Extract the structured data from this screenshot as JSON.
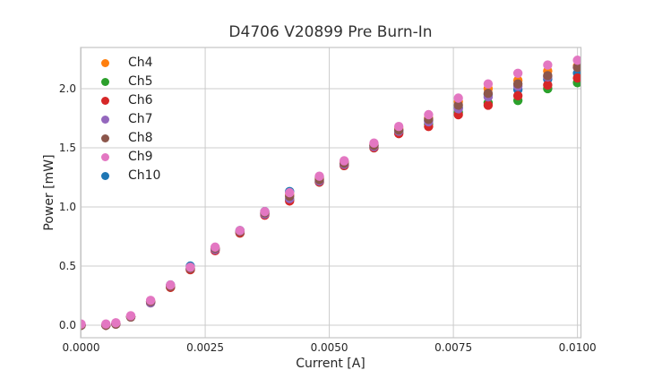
{
  "figure": {
    "background": "#ffffff",
    "text_color": "#262626"
  },
  "chart_data": {
    "type": "scatter",
    "title": "D4706 V20899 Pre Burn-In",
    "xlabel": "Current [A]",
    "ylabel": "Power [mW]",
    "xlim": [
      -1e-05,
      0.01007
    ],
    "ylim": [
      -0.106,
      2.348
    ],
    "grid": true,
    "grid_color": "#cccccc",
    "spine_color": "#c4c4c4",
    "legend_position": "upper left",
    "marker_radius_px": 5.2,
    "xticks": [
      {
        "value": 0.0,
        "label": "0.0000"
      },
      {
        "value": 0.0025,
        "label": "0.0025"
      },
      {
        "value": 0.005,
        "label": "0.0050"
      },
      {
        "value": 0.0075,
        "label": "0.0075"
      },
      {
        "value": 0.01,
        "label": "0.0100"
      }
    ],
    "yticks": [
      {
        "value": 0.0,
        "label": "0.0"
      },
      {
        "value": 0.5,
        "label": "0.5"
      },
      {
        "value": 1.0,
        "label": "1.0"
      },
      {
        "value": 1.5,
        "label": "1.5"
      },
      {
        "value": 2.0,
        "label": "2.0"
      }
    ],
    "x": [
      0.0,
      0.0005,
      0.0007,
      0.001,
      0.0014,
      0.0018,
      0.0022,
      0.0027,
      0.0032,
      0.0037,
      0.0042,
      0.0048,
      0.0053,
      0.0059,
      0.0064,
      0.007,
      0.0076,
      0.0082,
      0.0088,
      0.0094,
      0.01
    ],
    "series": [
      {
        "name": "Ch4",
        "color": "#ff7f0e",
        "values": [
          0.0,
          0.0,
          0.01,
          0.07,
          0.2,
          0.33,
          0.48,
          0.65,
          0.79,
          0.95,
          1.1,
          1.24,
          1.38,
          1.53,
          1.66,
          1.75,
          1.89,
          2.0,
          2.07,
          2.15,
          2.19
        ]
      },
      {
        "name": "Ch5",
        "color": "#2ca02c",
        "values": [
          0.0,
          0.0,
          0.01,
          0.07,
          0.19,
          0.32,
          0.47,
          0.64,
          0.78,
          0.94,
          1.06,
          1.21,
          1.35,
          1.5,
          1.63,
          1.7,
          1.8,
          1.88,
          1.9,
          2.0,
          2.05
        ]
      },
      {
        "name": "Ch6",
        "color": "#d62728",
        "values": [
          0.0,
          0.0,
          0.01,
          0.07,
          0.19,
          0.32,
          0.47,
          0.63,
          0.78,
          0.93,
          1.05,
          1.21,
          1.35,
          1.5,
          1.62,
          1.68,
          1.78,
          1.86,
          1.94,
          2.03,
          2.09
        ]
      },
      {
        "name": "Ch7",
        "color": "#9467bd",
        "values": [
          0.0,
          0.0,
          0.01,
          0.07,
          0.19,
          0.33,
          0.48,
          0.64,
          0.79,
          0.94,
          1.07,
          1.22,
          1.36,
          1.51,
          1.64,
          1.72,
          1.83,
          1.93,
          2.02,
          2.1,
          2.18
        ]
      },
      {
        "name": "Ch8",
        "color": "#8c564b",
        "values": [
          0.0,
          0.0,
          0.01,
          0.07,
          0.2,
          0.33,
          0.48,
          0.65,
          0.79,
          0.95,
          1.09,
          1.23,
          1.37,
          1.52,
          1.65,
          1.74,
          1.86,
          1.96,
          2.04,
          2.11,
          2.18
        ]
      },
      {
        "name": "Ch9",
        "color": "#e377c2",
        "values": [
          0.01,
          0.01,
          0.02,
          0.08,
          0.21,
          0.34,
          0.49,
          0.66,
          0.8,
          0.96,
          1.12,
          1.26,
          1.39,
          1.54,
          1.68,
          1.78,
          1.92,
          2.04,
          2.13,
          2.2,
          2.24
        ]
      },
      {
        "name": "Ch10",
        "color": "#1f77b4",
        "values": [
          0.0,
          0.0,
          0.01,
          0.07,
          0.2,
          0.34,
          0.5,
          0.65,
          0.8,
          0.96,
          1.13,
          1.25,
          1.38,
          1.52,
          1.65,
          1.73,
          1.84,
          1.95,
          1.99,
          2.08,
          2.13
        ]
      }
    ],
    "draw_order": [
      "Ch10",
      "Ch4",
      "Ch5",
      "Ch6",
      "Ch7",
      "Ch8",
      "Ch9"
    ]
  }
}
